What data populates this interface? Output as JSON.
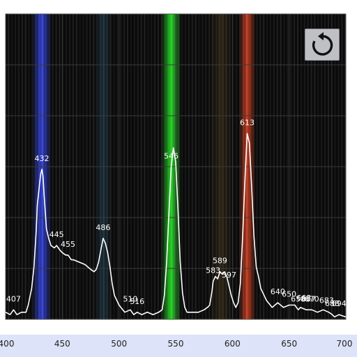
{
  "chart_data": {
    "type": "line",
    "xlim": [
      400,
      700
    ],
    "x_ticks": [
      400,
      450,
      500,
      550,
      600,
      650,
      700
    ],
    "y_gridlines": 5,
    "grid": true,
    "background_spectrum": [
      {
        "nm": 432,
        "color": "#3344ee",
        "strength": 0.85,
        "width": 7
      },
      {
        "nm": 486,
        "color": "#2f6c8a",
        "strength": 0.35,
        "width": 6
      },
      {
        "nm": 546,
        "color": "#22dd22",
        "strength": 0.95,
        "width": 7
      },
      {
        "nm": 590,
        "color": "#8a6a30",
        "strength": 0.25,
        "width": 8
      },
      {
        "nm": 613,
        "color": "#dd4020",
        "strength": 0.85,
        "width": 6
      }
    ],
    "series": [
      {
        "x": [
          400,
          404,
          407,
          410,
          414,
          418,
          420,
          423,
          425,
          427,
          428,
          430,
          431,
          432,
          433,
          434,
          436,
          438,
          440,
          443,
          445,
          448,
          450,
          453,
          455,
          458,
          460,
          465,
          470,
          475,
          478,
          480,
          482,
          484,
          486,
          488,
          490,
          492,
          494,
          496,
          500,
          505,
          510,
          513,
          516,
          520,
          525,
          530,
          535,
          538,
          540,
          542,
          544,
          546,
          548,
          550,
          552,
          554,
          556,
          558,
          560,
          565,
          570,
          575,
          578,
          580,
          582,
          583,
          585,
          587,
          589,
          591,
          593,
          595,
          597,
          599,
          601,
          603,
          605,
          607,
          609,
          611,
          613,
          615,
          617,
          619,
          621,
          623,
          625,
          630,
          635,
          640,
          645,
          650,
          655,
          658,
          660,
          665,
          670,
          675,
          680,
          685,
          688,
          690,
          694,
          700
        ],
        "y": [
          0.03,
          0.02,
          0.04,
          0.02,
          0.03,
          0.03,
          0.06,
          0.13,
          0.22,
          0.37,
          0.48,
          0.57,
          0.61,
          0.63,
          0.6,
          0.52,
          0.38,
          0.34,
          0.31,
          0.3,
          0.31,
          0.29,
          0.28,
          0.27,
          0.27,
          0.25,
          0.25,
          0.24,
          0.23,
          0.21,
          0.2,
          0.21,
          0.24,
          0.29,
          0.34,
          0.32,
          0.28,
          0.22,
          0.15,
          0.1,
          0.06,
          0.03,
          0.04,
          0.02,
          0.03,
          0.02,
          0.03,
          0.02,
          0.03,
          0.04,
          0.1,
          0.24,
          0.44,
          0.64,
          0.72,
          0.66,
          0.46,
          0.24,
          0.11,
          0.05,
          0.03,
          0.03,
          0.03,
          0.04,
          0.05,
          0.06,
          0.12,
          0.16,
          0.18,
          0.17,
          0.2,
          0.19,
          0.2,
          0.18,
          0.14,
          0.1,
          0.07,
          0.05,
          0.07,
          0.15,
          0.35,
          0.58,
          0.78,
          0.74,
          0.55,
          0.35,
          0.22,
          0.18,
          0.13,
          0.08,
          0.05,
          0.07,
          0.05,
          0.06,
          0.06,
          0.04,
          0.05,
          0.04,
          0.04,
          0.03,
          0.04,
          0.03,
          0.02,
          0.01,
          0.02,
          0.01
        ]
      }
    ],
    "peaks": [
      {
        "nm": 407,
        "label": "407"
      },
      {
        "nm": 432,
        "label": "432"
      },
      {
        "nm": 445,
        "label": "445"
      },
      {
        "nm": 455,
        "label": "455"
      },
      {
        "nm": 486,
        "label": "486"
      },
      {
        "nm": 510,
        "label": "510"
      },
      {
        "nm": 516,
        "label": "516"
      },
      {
        "nm": 546,
        "label": "546"
      },
      {
        "nm": 583,
        "label": "583"
      },
      {
        "nm": 589,
        "label": "589"
      },
      {
        "nm": 597,
        "label": "597"
      },
      {
        "nm": 613,
        "label": "613"
      },
      {
        "nm": 640,
        "label": "640"
      },
      {
        "nm": 650,
        "label": "650"
      },
      {
        "nm": 658,
        "label": "658"
      },
      {
        "nm": 663,
        "label": "663"
      },
      {
        "nm": 667,
        "label": "667"
      },
      {
        "nm": 670,
        "label": "670"
      },
      {
        "nm": 683,
        "label": "683"
      },
      {
        "nm": 688,
        "label": "688"
      },
      {
        "nm": 694,
        "label": "694"
      }
    ]
  },
  "toolbar": {
    "reset_icon": "refresh-icon",
    "reset_bg": "#bfc0c3"
  },
  "colors": {
    "plot_bg": "#0a0a0a",
    "grid": "#3a3a3a",
    "trace": "#ffffff",
    "axis_bar": "#dde3f8"
  }
}
